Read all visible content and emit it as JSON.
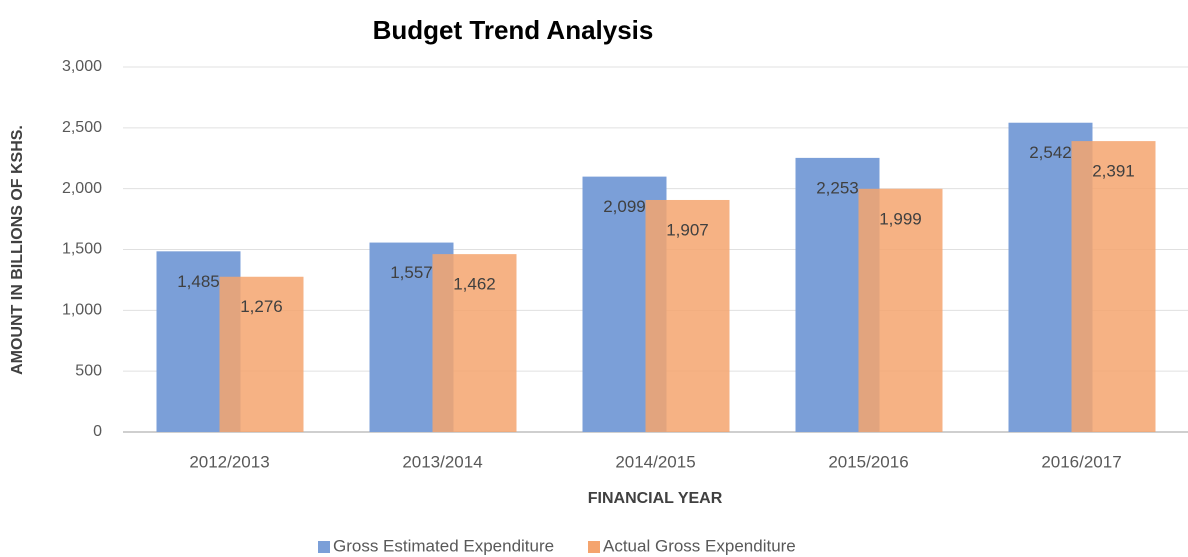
{
  "chart_data": {
    "type": "bar",
    "title": "Budget Trend Analysis",
    "x_label": "FINANCIAL YEAR",
    "y_label": "AMOUNT IN BILLIONS OF KSHS.",
    "categories": [
      "2012/2013",
      "2013/2014",
      "2014/2015",
      "2015/2016",
      "2016/2017"
    ],
    "series": [
      {
        "name": "Gross Estimated Expenditure",
        "color": "#7b9fd8",
        "values": [
          1485,
          1557,
          2099,
          2253,
          2542
        ],
        "value_labels": [
          "1,485",
          "1,557",
          "2,099",
          "2,253",
          "2,542"
        ]
      },
      {
        "name": "Actual Gross Expenditure",
        "color": "#f4a46e",
        "values": [
          1276,
          1462,
          1907,
          1999,
          2391
        ],
        "value_labels": [
          "1,276",
          "1,462",
          "1,907",
          "1,999",
          "2,391"
        ]
      }
    ],
    "ylim": [
      0,
      3000
    ],
    "yticks": [
      0,
      500,
      {
        "value": 1000,
        "label": "1,000"
      },
      {
        "value": 1500,
        "label": "1,500"
      },
      {
        "value": 2000,
        "label": "2,000"
      },
      {
        "value": 2500,
        "label": "2,500"
      },
      {
        "value": 3000,
        "label": "3,000"
      }
    ],
    "grid": true,
    "legend": "bottom"
  }
}
